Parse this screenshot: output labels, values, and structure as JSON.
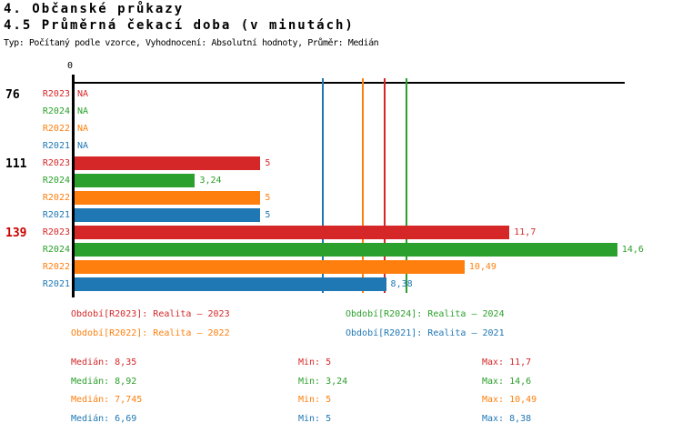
{
  "title1": "4. Občanské průkazy",
  "title2": "4.5 Průměrná čekací doba (v minutách)",
  "subtitle": "Typ: Počítaný podle vzorce, Vyhodnocení: Absolutní hodnoty, Průměr: Medián",
  "colors": {
    "R2023": "#d62728",
    "R2024": "#2ca02c",
    "R2022": "#ff7f0e",
    "R2021": "#1f77b4",
    "group_label_default": "#000000",
    "group_label_alert": "#cc0000",
    "axis": "#000000"
  },
  "chart_data": {
    "type": "bar",
    "orientation": "horizontal",
    "title": "4.5 Průměrná čekací doba (v minutách)",
    "xlabel": "",
    "ylabel": "",
    "xlim": [
      0,
      14.8
    ],
    "axis": {
      "zero_label": "0"
    },
    "series_order": [
      "R2023",
      "R2024",
      "R2022",
      "R2021"
    ],
    "groups": [
      {
        "label": "76",
        "label_style": "default",
        "rows": [
          {
            "series": "R2023",
            "value": null,
            "display": "NA"
          },
          {
            "series": "R2024",
            "value": null,
            "display": "NA"
          },
          {
            "series": "R2022",
            "value": null,
            "display": "NA"
          },
          {
            "series": "R2021",
            "value": null,
            "display": "NA"
          }
        ]
      },
      {
        "label": "111",
        "label_style": "default",
        "rows": [
          {
            "series": "R2023",
            "value": 5,
            "display": "5"
          },
          {
            "series": "R2024",
            "value": 3.24,
            "display": "3,24"
          },
          {
            "series": "R2022",
            "value": 5,
            "display": "5"
          },
          {
            "series": "R2021",
            "value": 5,
            "display": "5"
          }
        ]
      },
      {
        "label": "139",
        "label_style": "alert",
        "rows": [
          {
            "series": "R2023",
            "value": 11.7,
            "display": "11,7"
          },
          {
            "series": "R2024",
            "value": 14.6,
            "display": "14,6"
          },
          {
            "series": "R2022",
            "value": 10.49,
            "display": "10,49"
          },
          {
            "series": "R2021",
            "value": 8.38,
            "display": "8,38"
          }
        ]
      }
    ],
    "median_lines": [
      {
        "series": "R2021",
        "value": 6.69
      },
      {
        "series": "R2022",
        "value": 7.745
      },
      {
        "series": "R2023",
        "value": 8.35
      },
      {
        "series": "R2024",
        "value": 8.92
      }
    ]
  },
  "legend": [
    {
      "series": "R2023",
      "text": "Období[R2023]: Realita – 2023"
    },
    {
      "series": "R2024",
      "text": "Období[R2024]: Realita – 2024"
    },
    {
      "series": "R2022",
      "text": "Období[R2022]: Realita – 2022"
    },
    {
      "series": "R2021",
      "text": "Období[R2021]: Realita – 2021"
    }
  ],
  "stats": [
    {
      "series": "R2023",
      "median": "Medián: 8,35",
      "min": "Min: 5",
      "max": "Max: 11,7"
    },
    {
      "series": "R2024",
      "median": "Medián: 8,92",
      "min": "Min: 3,24",
      "max": "Max: 14,6"
    },
    {
      "series": "R2022",
      "median": "Medián: 7,745",
      "min": "Min: 5",
      "max": "Max: 10,49"
    },
    {
      "series": "R2021",
      "median": "Medián: 6,69",
      "min": "Min: 5",
      "max": "Max: 8,38"
    }
  ]
}
